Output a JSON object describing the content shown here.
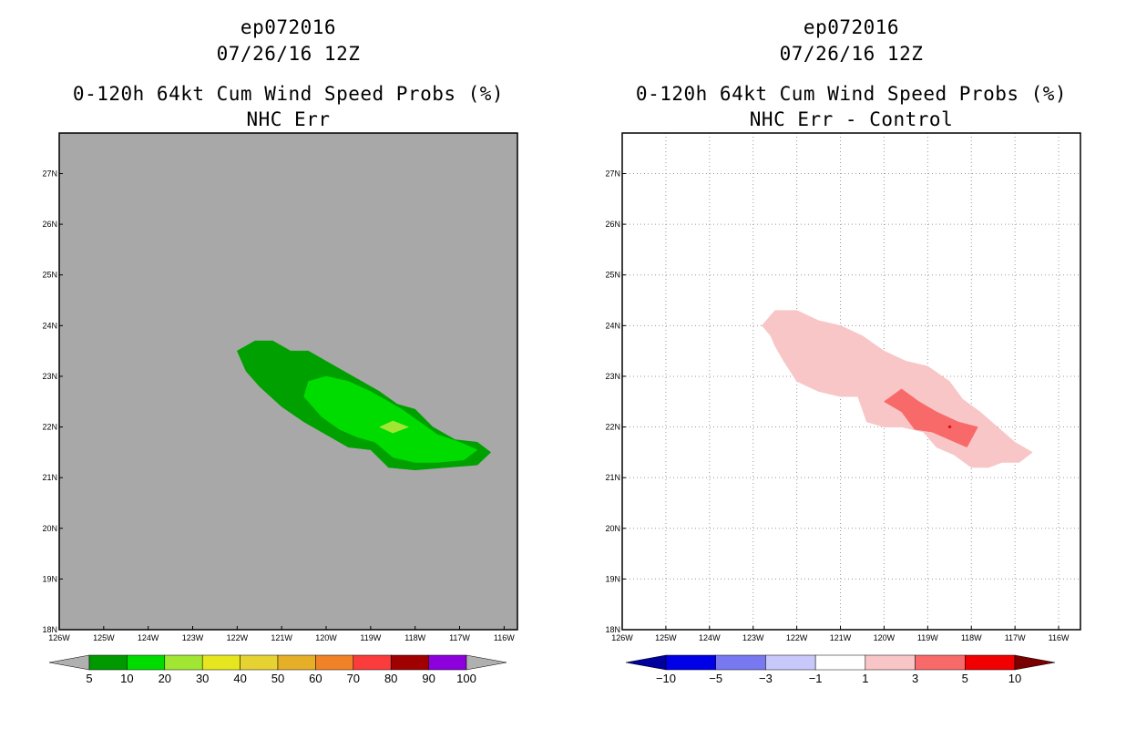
{
  "colors": {
    "ocean": "#a8a8a8",
    "green_5": "#00a000",
    "green_10": "#00dc00",
    "green_20": "#a0e632",
    "diff_1": "#f8c6c6",
    "diff_3": "#f86a6a",
    "diff_5": "#e00000"
  },
  "chart_data": [
    {
      "type": "contour-map",
      "title_lines": [
        "ep072016",
        "07/26/16 12Z",
        "0-120h 64kt Cum Wind Speed Probs (%)",
        "NHC Err"
      ],
      "x_ticks": [
        "126W",
        "125W",
        "124W",
        "123W",
        "122W",
        "121W",
        "120W",
        "119W",
        "118W",
        "117W",
        "116W"
      ],
      "y_ticks": [
        "18N",
        "19N",
        "20N",
        "21N",
        "22N",
        "23N",
        "24N",
        "25N",
        "26N",
        "27N"
      ],
      "xlim": [
        -126,
        -115.7
      ],
      "ylim": [
        18,
        27.8
      ],
      "grid": false,
      "background": "#a8a8a8",
      "contours": [
        {
          "level": 5,
          "color": "#00a000",
          "polygon": [
            [
              -122.0,
              23.5
            ],
            [
              -121.6,
              23.7
            ],
            [
              -121.2,
              23.7
            ],
            [
              -120.8,
              23.5
            ],
            [
              -120.4,
              23.5
            ],
            [
              -120.0,
              23.3
            ],
            [
              -119.6,
              23.1
            ],
            [
              -119.2,
              22.9
            ],
            [
              -118.8,
              22.7
            ],
            [
              -118.4,
              22.45
            ],
            [
              -118.0,
              22.35
            ],
            [
              -117.6,
              22.0
            ],
            [
              -117.1,
              21.75
            ],
            [
              -116.6,
              21.7
            ],
            [
              -116.3,
              21.5
            ],
            [
              -116.6,
              21.25
            ],
            [
              -117.3,
              21.2
            ],
            [
              -118.0,
              21.15
            ],
            [
              -118.6,
              21.2
            ],
            [
              -119.0,
              21.55
            ],
            [
              -119.5,
              21.6
            ],
            [
              -120.0,
              21.85
            ],
            [
              -120.5,
              22.1
            ],
            [
              -121.0,
              22.4
            ],
            [
              -121.5,
              22.8
            ],
            [
              -121.8,
              23.1
            ]
          ]
        },
        {
          "level": 10,
          "color": "#00dc00",
          "polygon": [
            [
              -120.5,
              22.6
            ],
            [
              -120.4,
              22.9
            ],
            [
              -120.0,
              23.0
            ],
            [
              -119.5,
              22.9
            ],
            [
              -119.0,
              22.7
            ],
            [
              -118.6,
              22.5
            ],
            [
              -118.3,
              22.35
            ],
            [
              -117.9,
              22.1
            ],
            [
              -117.5,
              21.85
            ],
            [
              -117.0,
              21.7
            ],
            [
              -116.6,
              21.55
            ],
            [
              -116.9,
              21.35
            ],
            [
              -117.5,
              21.3
            ],
            [
              -118.0,
              21.3
            ],
            [
              -118.5,
              21.4
            ],
            [
              -118.9,
              21.7
            ],
            [
              -119.3,
              21.8
            ],
            [
              -119.7,
              21.95
            ],
            [
              -120.1,
              22.2
            ]
          ]
        },
        {
          "level": 20,
          "color": "#a0e632",
          "polygon": [
            [
              -118.8,
              22.0
            ],
            [
              -118.5,
              22.12
            ],
            [
              -118.15,
              22.0
            ],
            [
              -118.5,
              21.88
            ]
          ]
        }
      ],
      "colorbar": {
        "levels": [
          "5",
          "10",
          "20",
          "30",
          "40",
          "50",
          "60",
          "70",
          "80",
          "90",
          "100"
        ],
        "colors": [
          "#009900",
          "#00dc00",
          "#a0e632",
          "#e6e61e",
          "#e6d232",
          "#e6af28",
          "#f08228",
          "#fa3c3c",
          "#a00000",
          "#8c00dc"
        ],
        "extend_under": "#b0b0b0",
        "extend_over": "#b0b0b0"
      }
    },
    {
      "type": "contour-map",
      "title_lines": [
        "ep072016",
        "07/26/16 12Z",
        "0-120h 64kt Cum Wind Speed Probs (%)",
        "NHC Err - Control"
      ],
      "x_ticks": [
        "126W",
        "125W",
        "124W",
        "123W",
        "122W",
        "121W",
        "120W",
        "119W",
        "118W",
        "117W",
        "116W"
      ],
      "y_ticks": [
        "18N",
        "19N",
        "20N",
        "21N",
        "22N",
        "23N",
        "24N",
        "25N",
        "26N",
        "27N"
      ],
      "xlim": [
        -126,
        -115.5
      ],
      "ylim": [
        18,
        27.8
      ],
      "grid": true,
      "background": "#ffffff",
      "contours": [
        {
          "level": 1,
          "color": "#f8c6c6",
          "polygon": [
            [
              -122.8,
              24.0
            ],
            [
              -122.5,
              24.3
            ],
            [
              -122.0,
              24.3
            ],
            [
              -121.5,
              24.1
            ],
            [
              -121.0,
              24.0
            ],
            [
              -120.5,
              23.8
            ],
            [
              -120.0,
              23.5
            ],
            [
              -119.5,
              23.3
            ],
            [
              -119.0,
              23.2
            ],
            [
              -118.5,
              22.9
            ],
            [
              -118.2,
              22.55
            ],
            [
              -117.8,
              22.3
            ],
            [
              -117.4,
              22.0
            ],
            [
              -117.0,
              21.7
            ],
            [
              -116.6,
              21.5
            ],
            [
              -116.9,
              21.3
            ],
            [
              -117.3,
              21.3
            ],
            [
              -117.6,
              21.2
            ],
            [
              -118.0,
              21.2
            ],
            [
              -118.4,
              21.45
            ],
            [
              -118.8,
              21.6
            ],
            [
              -119.1,
              21.9
            ],
            [
              -119.6,
              22.0
            ],
            [
              -120.0,
              22.0
            ],
            [
              -120.4,
              22.1
            ],
            [
              -120.6,
              22.6
            ],
            [
              -121.0,
              22.6
            ],
            [
              -121.5,
              22.7
            ],
            [
              -122.0,
              22.9
            ],
            [
              -122.3,
              23.3
            ],
            [
              -122.5,
              23.6
            ],
            [
              -122.6,
              23.8
            ]
          ]
        },
        {
          "level": 3,
          "color": "#f86a6a",
          "polygon": [
            [
              -120.0,
              22.5
            ],
            [
              -119.6,
              22.75
            ],
            [
              -119.2,
              22.5
            ],
            [
              -118.8,
              22.3
            ],
            [
              -118.3,
              22.1
            ],
            [
              -117.85,
              22.0
            ],
            [
              -118.1,
              21.6
            ],
            [
              -118.5,
              21.75
            ],
            [
              -118.9,
              21.9
            ],
            [
              -119.3,
              21.95
            ],
            [
              -119.6,
              22.3
            ]
          ]
        },
        {
          "level": 5,
          "color": "#e00000",
          "polygon": [
            [
              -118.53,
              22.01
            ],
            [
              -118.48,
              22.03
            ],
            [
              -118.46,
              21.99
            ],
            [
              -118.51,
              21.98
            ]
          ]
        }
      ],
      "colorbar": {
        "levels": [
          "-10",
          "-5",
          "-3",
          "-1",
          "1",
          "3",
          "5",
          "10"
        ],
        "colors": [
          "#0000e6",
          "#7878f0",
          "#c8c8fa",
          "#ffffff",
          "#f8c6c6",
          "#f86a6a",
          "#f00000"
        ],
        "extend_under": "#00009c",
        "extend_over": "#7a0000"
      }
    }
  ]
}
